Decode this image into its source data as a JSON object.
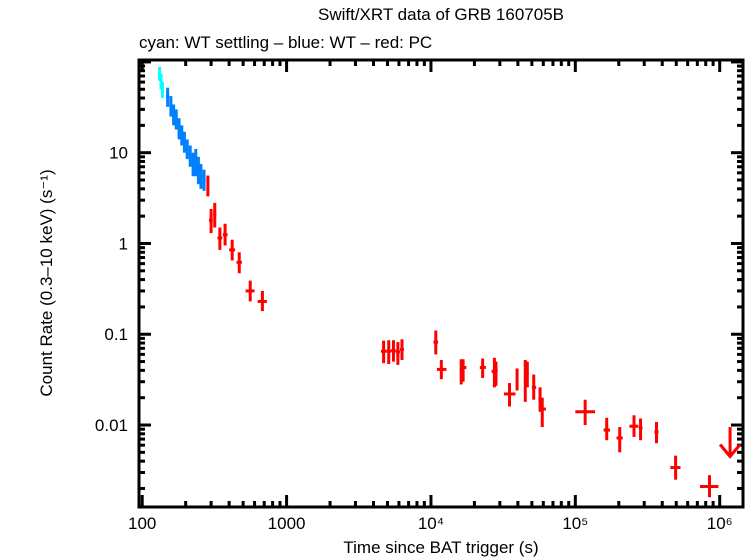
{
  "chart_data": {
    "type": "scatter",
    "title": "Swift/XRT data of GRB 160705B",
    "subtitle": "cyan: WT settling – blue: WT – red: PC",
    "xlabel": "Time since BAT trigger (s)",
    "ylabel": "Count Rate (0.3–10 keV) (s⁻¹)",
    "xscale": "log",
    "yscale": "log",
    "xlim": [
      95,
      1450000
    ],
    "ylim": [
      0.00125,
      105
    ],
    "x_ticks": [
      {
        "value": 100,
        "label": "100"
      },
      {
        "value": 1000,
        "label": "1000"
      },
      {
        "value": 10000,
        "label": "10⁴"
      },
      {
        "value": 100000,
        "label": "10⁵"
      },
      {
        "value": 1000000,
        "label": "10⁶"
      }
    ],
    "y_ticks": [
      {
        "value": 10,
        "label": "10"
      },
      {
        "value": 1,
        "label": "1"
      },
      {
        "value": 0.1,
        "label": "0.1"
      },
      {
        "value": 0.01,
        "label": "0.01"
      }
    ],
    "grid": false,
    "legend": "none",
    "series": [
      {
        "name": "WT settling",
        "color": "#00ffff",
        "points": [
          {
            "x": 132,
            "xlo": 130,
            "xhi": 134,
            "y": 75,
            "ylo": 62,
            "yhi": 88
          },
          {
            "x": 135,
            "xlo": 134,
            "xhi": 137,
            "y": 62,
            "ylo": 50,
            "yhi": 74
          },
          {
            "x": 138,
            "xlo": 137,
            "xhi": 140,
            "y": 50,
            "ylo": 40,
            "yhi": 60
          }
        ]
      },
      {
        "name": "WT",
        "color": "#0080ff",
        "points": [
          {
            "x": 150,
            "xlo": 146,
            "xhi": 154,
            "y": 42,
            "ylo": 32,
            "yhi": 52
          },
          {
            "x": 158,
            "xlo": 154,
            "xhi": 162,
            "y": 33,
            "ylo": 25,
            "yhi": 42
          },
          {
            "x": 165,
            "xlo": 162,
            "xhi": 168,
            "y": 27,
            "ylo": 20,
            "yhi": 34
          },
          {
            "x": 172,
            "xlo": 168,
            "xhi": 176,
            "y": 24,
            "ylo": 18,
            "yhi": 30
          },
          {
            "x": 180,
            "xlo": 176,
            "xhi": 184,
            "y": 19,
            "ylo": 14,
            "yhi": 24
          },
          {
            "x": 188,
            "xlo": 184,
            "xhi": 192,
            "y": 16,
            "ylo": 12,
            "yhi": 20
          },
          {
            "x": 196,
            "xlo": 192,
            "xhi": 200,
            "y": 13,
            "ylo": 10,
            "yhi": 17
          },
          {
            "x": 205,
            "xlo": 200,
            "xhi": 210,
            "y": 11,
            "ylo": 8.5,
            "yhi": 14
          },
          {
            "x": 215,
            "xlo": 210,
            "xhi": 220,
            "y": 9.5,
            "ylo": 7,
            "yhi": 12
          },
          {
            "x": 225,
            "xlo": 220,
            "xhi": 230,
            "y": 7.5,
            "ylo": 5.5,
            "yhi": 10
          },
          {
            "x": 235,
            "xlo": 230,
            "xhi": 240,
            "y": 8,
            "ylo": 5.5,
            "yhi": 11
          },
          {
            "x": 245,
            "xlo": 240,
            "xhi": 250,
            "y": 6.5,
            "ylo": 4.5,
            "yhi": 9
          },
          {
            "x": 255,
            "xlo": 250,
            "xhi": 262,
            "y": 5.5,
            "ylo": 4,
            "yhi": 7.5
          },
          {
            "x": 268,
            "xlo": 262,
            "xhi": 275,
            "y": 5,
            "ylo": 3.8,
            "yhi": 6.5
          }
        ]
      },
      {
        "name": "PC",
        "color": "#ff0000",
        "points": [
          {
            "x": 285,
            "xlo": 282,
            "xhi": 289,
            "y": 4.4,
            "ylo": 3.3,
            "yhi": 5.6
          },
          {
            "x": 300,
            "xlo": 290,
            "xhi": 308,
            "y": 1.8,
            "ylo": 1.3,
            "yhi": 2.4
          },
          {
            "x": 318,
            "xlo": 310,
            "xhi": 326,
            "y": 2.1,
            "ylo": 1.5,
            "yhi": 2.8
          },
          {
            "x": 345,
            "xlo": 332,
            "xhi": 358,
            "y": 1.15,
            "ylo": 0.85,
            "yhi": 1.5
          },
          {
            "x": 375,
            "xlo": 362,
            "xhi": 390,
            "y": 1.25,
            "ylo": 0.95,
            "yhi": 1.65
          },
          {
            "x": 420,
            "xlo": 400,
            "xhi": 440,
            "y": 0.85,
            "ylo": 0.65,
            "yhi": 1.1
          },
          {
            "x": 470,
            "xlo": 450,
            "xhi": 490,
            "y": 0.62,
            "ylo": 0.47,
            "yhi": 0.8
          },
          {
            "x": 560,
            "xlo": 520,
            "xhi": 600,
            "y": 0.3,
            "ylo": 0.23,
            "yhi": 0.39
          },
          {
            "x": 680,
            "xlo": 630,
            "xhi": 730,
            "y": 0.23,
            "ylo": 0.18,
            "yhi": 0.3
          },
          {
            "x": 4700,
            "xlo": 4500,
            "xhi": 4900,
            "y": 0.065,
            "ylo": 0.048,
            "yhi": 0.085
          },
          {
            "x": 5100,
            "xlo": 4900,
            "xhi": 5300,
            "y": 0.065,
            "ylo": 0.047,
            "yhi": 0.086
          },
          {
            "x": 5500,
            "xlo": 5300,
            "xhi": 5700,
            "y": 0.066,
            "ylo": 0.05,
            "yhi": 0.086
          },
          {
            "x": 5900,
            "xlo": 5700,
            "xhi": 6100,
            "y": 0.064,
            "ylo": 0.046,
            "yhi": 0.082
          },
          {
            "x": 6300,
            "xlo": 6100,
            "xhi": 6500,
            "y": 0.068,
            "ylo": 0.052,
            "yhi": 0.088
          },
          {
            "x": 10800,
            "xlo": 10400,
            "xhi": 11200,
            "y": 0.082,
            "ylo": 0.06,
            "yhi": 0.11
          },
          {
            "x": 11800,
            "xlo": 11000,
            "xhi": 12800,
            "y": 0.041,
            "ylo": 0.032,
            "yhi": 0.052
          },
          {
            "x": 16200,
            "xlo": 15800,
            "xhi": 16700,
            "y": 0.041,
            "ylo": 0.028,
            "yhi": 0.053
          },
          {
            "x": 16700,
            "xlo": 16300,
            "xhi": 17600,
            "y": 0.043,
            "ylo": 0.03,
            "yhi": 0.053
          },
          {
            "x": 22800,
            "xlo": 21800,
            "xhi": 24000,
            "y": 0.043,
            "ylo": 0.033,
            "yhi": 0.054
          },
          {
            "x": 27500,
            "xlo": 26300,
            "xhi": 28200,
            "y": 0.039,
            "ylo": 0.026,
            "yhi": 0.055
          },
          {
            "x": 28200,
            "xlo": 27600,
            "xhi": 29000,
            "y": 0.04,
            "ylo": 0.027,
            "yhi": 0.05
          },
          {
            "x": 35000,
            "xlo": 32000,
            "xhi": 38500,
            "y": 0.022,
            "ylo": 0.016,
            "yhi": 0.029
          },
          {
            "x": 39500,
            "xlo": 38800,
            "xhi": 40300,
            "y": 0.033,
            "ylo": 0.024,
            "yhi": 0.042
          },
          {
            "x": 45000,
            "xlo": 44000,
            "xhi": 46000,
            "y": 0.032,
            "ylo": 0.018,
            "yhi": 0.052
          },
          {
            "x": 46500,
            "xlo": 45500,
            "xhi": 47500,
            "y": 0.037,
            "ylo": 0.026,
            "yhi": 0.05
          },
          {
            "x": 51500,
            "xlo": 50000,
            "xhi": 53500,
            "y": 0.026,
            "ylo": 0.019,
            "yhi": 0.036
          },
          {
            "x": 57000,
            "xlo": 55500,
            "xhi": 58500,
            "y": 0.019,
            "ylo": 0.014,
            "yhi": 0.026
          },
          {
            "x": 59000,
            "xlo": 57500,
            "xhi": 62500,
            "y": 0.015,
            "ylo": 0.0095,
            "yhi": 0.02
          },
          {
            "x": 117000,
            "xlo": 100000,
            "xhi": 137000,
            "y": 0.014,
            "ylo": 0.01,
            "yhi": 0.019
          },
          {
            "x": 165000,
            "xlo": 157000,
            "xhi": 174000,
            "y": 0.0088,
            "ylo": 0.0068,
            "yhi": 0.012
          },
          {
            "x": 203000,
            "xlo": 193000,
            "xhi": 213000,
            "y": 0.0072,
            "ylo": 0.005,
            "yhi": 0.0095
          },
          {
            "x": 255000,
            "xlo": 237000,
            "xhi": 273000,
            "y": 0.0097,
            "ylo": 0.0074,
            "yhi": 0.0128
          },
          {
            "x": 283000,
            "xlo": 275000,
            "xhi": 292000,
            "y": 0.0093,
            "ylo": 0.0068,
            "yhi": 0.0118
          },
          {
            "x": 365000,
            "xlo": 353000,
            "xhi": 377000,
            "y": 0.0084,
            "ylo": 0.0063,
            "yhi": 0.0108
          },
          {
            "x": 495000,
            "xlo": 455000,
            "xhi": 535000,
            "y": 0.0034,
            "ylo": 0.0025,
            "yhi": 0.0046
          },
          {
            "x": 850000,
            "xlo": 730000,
            "xhi": 980000,
            "y": 0.0021,
            "ylo": 0.0016,
            "yhi": 0.0028
          }
        ]
      },
      {
        "name": "PC upper limit",
        "color": "#ff0000",
        "upper_limits": [
          {
            "x": 1180000,
            "y": 0.0095,
            "arrow_to": 0.0045
          }
        ]
      }
    ]
  }
}
